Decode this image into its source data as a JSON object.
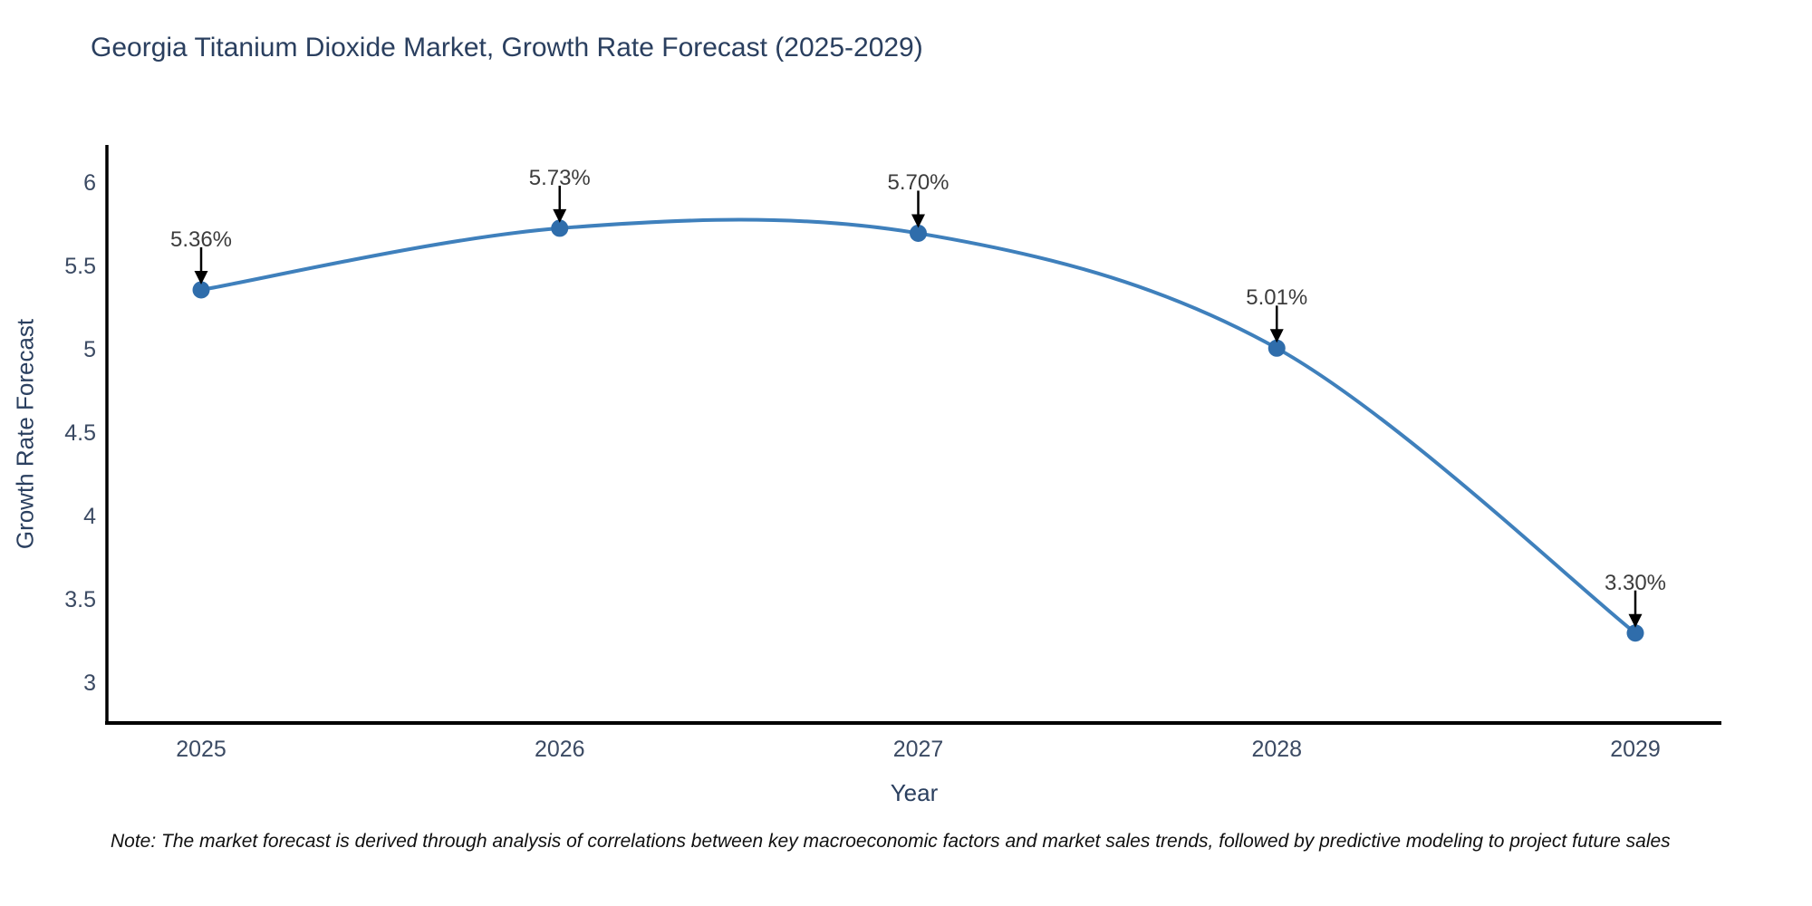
{
  "title": "Georgia Titanium Dioxide Market, Growth Rate Forecast (2025-2029)",
  "note": "Note: The market forecast is derived through analysis of correlations between key macroeconomic factors and market sales trends, followed by predictive modeling to project future sales",
  "chart_data": {
    "type": "line",
    "title": "Georgia Titanium Dioxide Market, Growth Rate Forecast (2025-2029)",
    "xlabel": "Year",
    "ylabel": "Growth Rate Forecast",
    "x": [
      2025,
      2026,
      2027,
      2028,
      2029
    ],
    "values": [
      5.36,
      5.73,
      5.7,
      5.01,
      3.3
    ],
    "point_labels": [
      "5.36%",
      "5.73%",
      "5.70%",
      "5.01%",
      "3.30%"
    ],
    "xticks": [
      "2025",
      "2026",
      "2027",
      "2028",
      "2029"
    ],
    "yticks": [
      6,
      5.5,
      5,
      4.5,
      4,
      3.5,
      3
    ],
    "ytick_labels": [
      "6",
      "5.5",
      "5",
      "4.5",
      "4",
      "3.5",
      "3"
    ],
    "ylim": [
      2.76,
      6.23
    ],
    "curve": "spline",
    "grid": false,
    "legend": "none",
    "colors": {
      "line": "#3f80bc",
      "marker": "#2f6dab",
      "arrow": "#000000",
      "axis_line": "#000000",
      "title_text": "#2a3f5f",
      "tick_text": "#3b4a63",
      "note_text": "#101010",
      "background": "#ffffff"
    }
  }
}
